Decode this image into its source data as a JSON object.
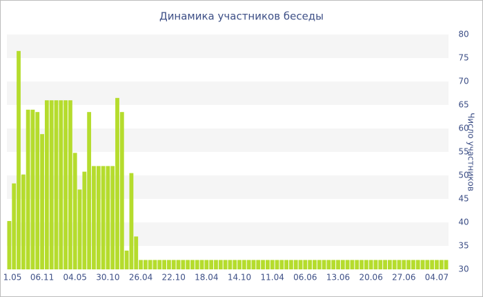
{
  "chart_data": {
    "type": "bar",
    "title": "Динамика участников беседы",
    "y_label": "Число участников",
    "categories": [
      "1.05",
      null,
      null,
      null,
      null,
      null,
      null,
      "06.11",
      null,
      null,
      null,
      null,
      null,
      null,
      "04.05",
      null,
      null,
      null,
      null,
      null,
      null,
      "30.10",
      null,
      null,
      null,
      null,
      null,
      null,
      "26.04",
      null,
      null,
      null,
      null,
      null,
      null,
      "22.10",
      null,
      null,
      null,
      null,
      null,
      null,
      "18.04",
      null,
      null,
      null,
      null,
      null,
      null,
      "14.10",
      null,
      null,
      null,
      null,
      null,
      null,
      "11.04",
      null,
      null,
      null,
      null,
      null,
      null,
      "06.06",
      null,
      null,
      null,
      null,
      null,
      null,
      "13.06",
      null,
      null,
      null,
      null,
      null,
      null,
      "20.06",
      null,
      null,
      null,
      null,
      null,
      null,
      "27.06",
      null,
      null,
      null,
      null,
      null,
      null,
      "04.07",
      null,
      null
    ],
    "values": [
      40.3,
      48.3,
      76.5,
      50.2,
      64,
      64,
      63.5,
      58.8,
      66,
      66,
      66,
      66,
      66,
      66,
      54.8,
      47,
      50.8,
      63.5,
      52,
      52,
      52,
      52,
      52,
      66.5,
      63.5,
      34,
      50.5,
      37,
      32,
      32,
      32,
      32,
      32,
      32,
      32,
      32,
      32,
      32,
      32,
      32,
      32,
      32,
      32,
      32,
      32,
      32,
      32,
      32,
      32,
      32,
      32,
      32,
      32,
      32,
      32,
      32,
      32,
      32,
      32,
      32,
      32,
      32,
      32,
      32,
      32,
      32,
      32,
      32,
      32,
      32,
      32,
      32,
      32,
      32,
      32,
      32,
      32,
      32,
      32,
      32,
      32,
      32,
      32,
      32,
      32,
      32,
      32,
      32,
      32,
      32,
      32,
      32,
      32,
      32
    ],
    "color": "#b5dc2d",
    "ylim": [
      30,
      80
    ],
    "yticks": [
      30,
      35,
      40,
      45,
      50,
      55,
      60,
      65,
      70,
      75,
      80
    ],
    "grid": true,
    "grid_color": "#f5f5f5"
  }
}
